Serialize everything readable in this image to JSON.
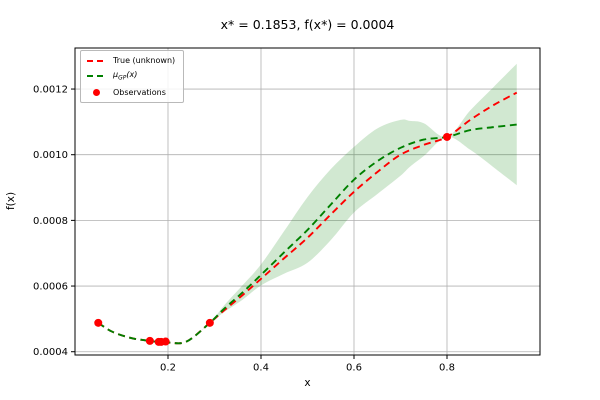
{
  "chart_data": {
    "type": "line",
    "title": "x* = 0.1853, f(x*) = 0.0004",
    "xlabel": "x",
    "ylabel": "f(x)",
    "xlim": [
      0.0,
      1.0
    ],
    "ylim": [
      0.00039,
      0.001325
    ],
    "grid": true,
    "grid_color": "#b0b0b0",
    "spine_color": "#000000",
    "background_color": "#ffffff",
    "legend_position": "upper-left",
    "xticks": [
      {
        "value": 0.2,
        "label": "0.2"
      },
      {
        "value": 0.4,
        "label": "0.4"
      },
      {
        "value": 0.6,
        "label": "0.6"
      },
      {
        "value": 0.8,
        "label": "0.8"
      }
    ],
    "yticks": [
      {
        "value": 0.0004,
        "label": "0.0004"
      },
      {
        "value": 0.0006,
        "label": "0.0006"
      },
      {
        "value": 0.0008,
        "label": "0.0008"
      },
      {
        "value": 0.001,
        "label": "0.0010"
      },
      {
        "value": 0.0012,
        "label": "0.0012"
      }
    ],
    "x": [
      0.05,
      0.08,
      0.12,
      0.16,
      0.2,
      0.24,
      0.29,
      0.32,
      0.36,
      0.4,
      0.45,
      0.5,
      0.55,
      0.6,
      0.65,
      0.7,
      0.75,
      0.8,
      0.85,
      0.9,
      0.95
    ],
    "series": [
      {
        "name": "True (unknown)",
        "color": "#ff0000",
        "style": "dashed",
        "y": [
          0.000488,
          0.000461,
          0.000442,
          0.000433,
          0.000428,
          0.000431,
          0.000488,
          0.000525,
          0.000572,
          0.000622,
          0.000685,
          0.000747,
          0.000818,
          0.000887,
          0.000947,
          0.001,
          0.00103,
          0.001054,
          0.001106,
          0.001151,
          0.001189
        ]
      },
      {
        "name": "μ_GP(x)",
        "color": "#008000",
        "style": "dashed",
        "y": [
          0.000488,
          0.000461,
          0.000442,
          0.000433,
          0.000428,
          0.000431,
          0.000488,
          0.00053,
          0.00058,
          0.000634,
          0.000703,
          0.000771,
          0.000848,
          0.000924,
          0.00098,
          0.001021,
          0.001046,
          0.001054,
          0.001075,
          0.001084,
          0.001092
        ]
      }
    ],
    "band": {
      "name": "GP confidence band",
      "color": "#008000",
      "opacity": 0.18,
      "x": [
        0.05,
        0.08,
        0.12,
        0.16,
        0.2,
        0.24,
        0.29,
        0.32,
        0.36,
        0.4,
        0.45,
        0.5,
        0.55,
        0.6,
        0.65,
        0.7,
        0.72,
        0.75,
        0.8,
        0.85,
        0.9,
        0.95
      ],
      "upper": [
        0.000488,
        0.000461,
        0.000442,
        0.000433,
        0.000428,
        0.000431,
        0.000488,
        0.00054,
        0.000602,
        0.000666,
        0.000768,
        0.000871,
        0.000956,
        0.001024,
        0.00108,
        0.001106,
        0.001103,
        0.001096,
        0.001054,
        0.001135,
        0.001206,
        0.001277
      ],
      "lower": [
        0.000488,
        0.000461,
        0.000442,
        0.000433,
        0.000428,
        0.000431,
        0.000488,
        0.00052,
        0.000558,
        0.000602,
        0.000638,
        0.000671,
        0.00074,
        0.000824,
        0.00088,
        0.000936,
        0.000963,
        0.000996,
        0.001054,
        0.001015,
        0.000962,
        0.000907
      ]
    },
    "observations": {
      "name": "Observations",
      "color": "#ff0000",
      "marker": "circle",
      "marker_radius": 4,
      "points": [
        [
          0.05,
          0.000488
        ],
        [
          0.161,
          0.000433
        ],
        [
          0.18,
          0.00043
        ],
        [
          0.1853,
          0.00043
        ],
        [
          0.195,
          0.000431
        ],
        [
          0.29,
          0.000488
        ],
        [
          0.8,
          0.001054
        ]
      ]
    },
    "legend": {
      "items": [
        {
          "label": "True (unknown)",
          "marker": "dashed-line",
          "color": "#ff0000"
        },
        {
          "label": "μ_GP(x)",
          "label_prefix": "μ",
          "label_sub": "GP",
          "label_suffix": "(x)",
          "marker": "dashed-line",
          "color": "#008000"
        },
        {
          "label": "Observations",
          "marker": "dot",
          "color": "#ff0000"
        }
      ]
    }
  }
}
